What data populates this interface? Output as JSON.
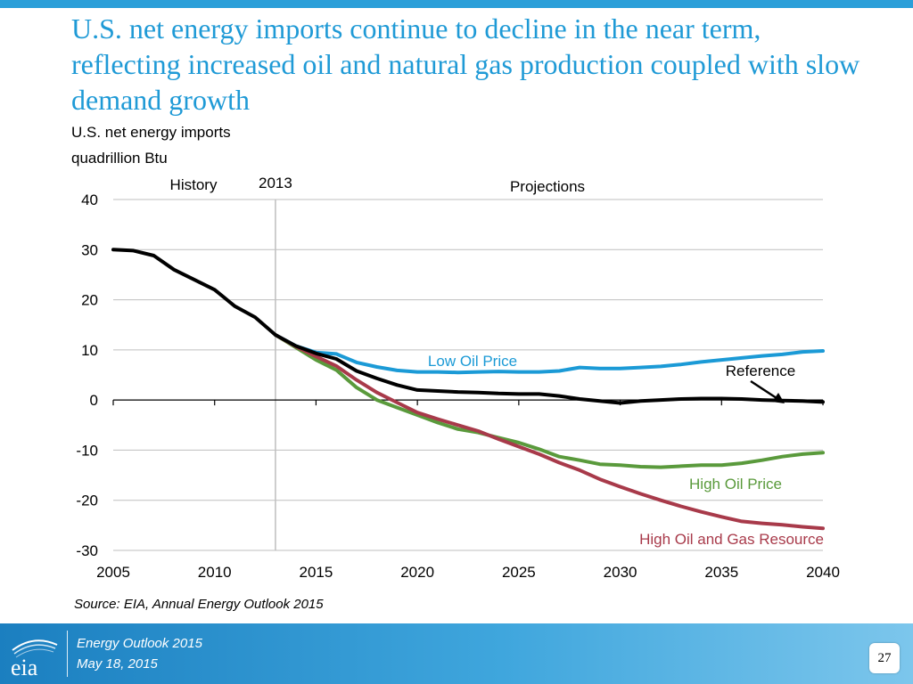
{
  "slide": {
    "title": "U.S. net energy imports continue to decline in the near term, reflecting increased oil and natural gas production coupled with slow demand growth",
    "subtitle_line1": "U.S. net energy imports",
    "subtitle_line2": "quadrillion Btu",
    "source": "Source:  EIA, Annual Energy Outlook 2015",
    "footer_line1": "Energy  Outlook 2015",
    "footer_line2": "May 18, 2015",
    "page_number": "27",
    "logo_text": "eia"
  },
  "colors": {
    "title": "#1f9ad6",
    "low_oil_price": "#1b9ad6",
    "reference": "#000000",
    "high_oil_price": "#5a9a3c",
    "high_resource": "#a83a4a",
    "grid": "#bfbfbf"
  },
  "chart_data": {
    "type": "line",
    "title": "U.S. net energy imports",
    "ylabel": "quadrillion Btu",
    "xlabel": "",
    "xlim": [
      2005,
      2040
    ],
    "ylim": [
      -30,
      40
    ],
    "x_ticks": [
      2005,
      2010,
      2015,
      2020,
      2025,
      2030,
      2035,
      2040
    ],
    "y_ticks": [
      40,
      30,
      20,
      10,
      0,
      -10,
      -20,
      -30
    ],
    "grid": true,
    "annotations": {
      "history": "History",
      "divider_year_label": "2013",
      "divider_year": 2013,
      "projections": "Projections"
    },
    "series": [
      {
        "name": "Reference",
        "label": "Reference",
        "color": "#000000",
        "x": [
          2005,
          2006,
          2007,
          2008,
          2009,
          2010,
          2011,
          2012,
          2013,
          2014,
          2015,
          2016,
          2017,
          2018,
          2019,
          2020,
          2021,
          2022,
          2023,
          2024,
          2025,
          2026,
          2027,
          2028,
          2029,
          2030,
          2031,
          2032,
          2033,
          2034,
          2035,
          2036,
          2037,
          2038,
          2039,
          2040
        ],
        "values": [
          30,
          29.8,
          28.8,
          26,
          24,
          22,
          18.7,
          16.5,
          13,
          10.8,
          9.3,
          8.2,
          5.8,
          4.3,
          3,
          2,
          1.8,
          1.6,
          1.5,
          1.3,
          1.2,
          1.2,
          0.8,
          0.2,
          -0.2,
          -0.6,
          -0.2,
          0,
          0.2,
          0.3,
          0.3,
          0.2,
          0,
          -0.1,
          -0.2,
          -0.4
        ]
      },
      {
        "name": "Low Oil Price",
        "label": "Low Oil Price",
        "color": "#1b9ad6",
        "x": [
          2013,
          2014,
          2015,
          2016,
          2017,
          2018,
          2019,
          2020,
          2021,
          2022,
          2023,
          2024,
          2025,
          2026,
          2027,
          2028,
          2029,
          2030,
          2031,
          2032,
          2033,
          2034,
          2035,
          2036,
          2037,
          2038,
          2039,
          2040
        ],
        "values": [
          13,
          10.8,
          9.5,
          9.2,
          7.5,
          6.6,
          5.9,
          5.6,
          5.6,
          5.5,
          5.6,
          5.7,
          5.6,
          5.6,
          5.8,
          6.5,
          6.3,
          6.3,
          6.5,
          6.7,
          7.1,
          7.6,
          8,
          8.4,
          8.8,
          9.1,
          9.6,
          9.8
        ]
      },
      {
        "name": "High Oil Price",
        "label": "High Oil Price",
        "color": "#5a9a3c",
        "x": [
          2013,
          2014,
          2015,
          2016,
          2017,
          2018,
          2019,
          2020,
          2021,
          2022,
          2023,
          2024,
          2025,
          2026,
          2027,
          2028,
          2029,
          2030,
          2031,
          2032,
          2033,
          2034,
          2035,
          2036,
          2037,
          2038,
          2039,
          2040
        ],
        "values": [
          13,
          10.5,
          8,
          6,
          2.5,
          0,
          -1.5,
          -3,
          -4.5,
          -5.8,
          -6.5,
          -7.5,
          -8.5,
          -9.8,
          -11.3,
          -12,
          -12.8,
          -13,
          -13.3,
          -13.4,
          -13.2,
          -13,
          -13,
          -12.6,
          -12,
          -11.3,
          -10.8,
          -10.5
        ]
      },
      {
        "name": "High Oil and Gas Resource",
        "label": "High Oil and Gas Resource",
        "color": "#a83a4a",
        "x": [
          2013,
          2014,
          2015,
          2016,
          2017,
          2018,
          2019,
          2020,
          2021,
          2022,
          2023,
          2024,
          2025,
          2026,
          2027,
          2028,
          2029,
          2030,
          2031,
          2032,
          2033,
          2034,
          2035,
          2036,
          2037,
          2038,
          2039,
          2040
        ],
        "values": [
          13,
          10.7,
          8.7,
          6.8,
          4,
          1.5,
          -0.5,
          -2.5,
          -3.8,
          -5,
          -6.2,
          -7.8,
          -9.3,
          -10.8,
          -12.5,
          -14,
          -15.8,
          -17.3,
          -18.7,
          -20,
          -21.2,
          -22.3,
          -23.3,
          -24.2,
          -24.6,
          -24.9,
          -25.3,
          -25.6
        ]
      }
    ]
  }
}
